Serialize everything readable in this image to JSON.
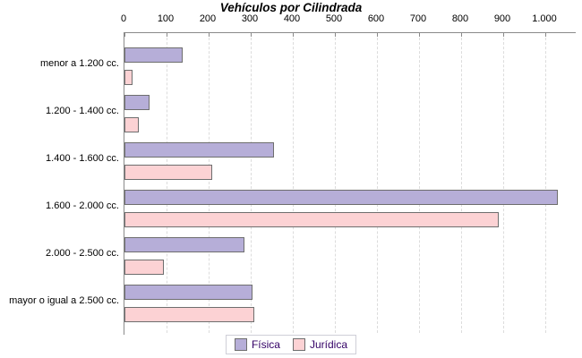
{
  "title": "Vehículos por Cilindrada",
  "chart_data": {
    "type": "bar",
    "orientation": "horizontal",
    "title": "Vehículos por Cilindrada",
    "categories": [
      "menor a 1.200 cc.",
      "1.200 - 1.400 cc.",
      "1.400 - 1.600 cc.",
      "1.600 - 2.000 cc.",
      "2.000 - 2.500 cc.",
      "mayor o igual a 2.500 cc."
    ],
    "series": [
      {
        "name": "Física",
        "color": "#b6aed8",
        "values": [
          135,
          55,
          350,
          1025,
          280,
          300
        ]
      },
      {
        "name": "Jurídica",
        "color": "#fcd2d4",
        "values": [
          15,
          30,
          205,
          885,
          90,
          305
        ]
      }
    ],
    "xlim": [
      0,
      1070
    ],
    "x_ticks": [
      0,
      100,
      200,
      300,
      400,
      500,
      600,
      700,
      800,
      900,
      1000
    ],
    "x_tick_labels": [
      "0",
      "100",
      "200",
      "300",
      "400",
      "500",
      "600",
      "700",
      "800",
      "900",
      "1.000"
    ],
    "grid": "vertical-dashed",
    "legend_position": "bottom-center",
    "bar_border_color": "#6e6e6e",
    "axis_color": "#8a8a8a",
    "legend_text_color": "#330066"
  },
  "legend": {
    "items": [
      {
        "label": "Física",
        "color": "#b6aed8"
      },
      {
        "label": "Jurídica",
        "color": "#fcd2d4"
      }
    ]
  }
}
